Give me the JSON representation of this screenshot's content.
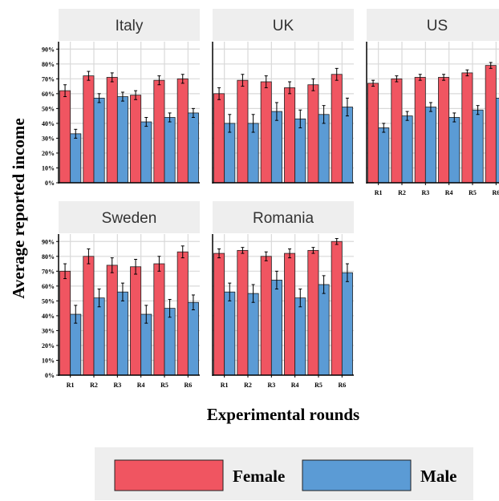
{
  "chart_data": {
    "type": "bar",
    "xlabel": "Experimental rounds",
    "ylabel": "Average reported income",
    "categories": [
      "R1",
      "R2",
      "R3",
      "R4",
      "R5",
      "R6"
    ],
    "ylim": [
      0,
      0.95
    ],
    "yticks": [
      "0%",
      "10%",
      "20%",
      "30%",
      "40%",
      "50%",
      "60%",
      "70%",
      "80%",
      "90%"
    ],
    "grid": true,
    "legend_position": "bottom",
    "series_colors": {
      "Female": "#f05561",
      "Male": "#5b9bd5"
    },
    "legend": [
      "Female",
      "Male"
    ],
    "panels": [
      {
        "title": "Italy",
        "female": [
          62,
          72,
          71,
          59,
          69,
          70
        ],
        "female_err": [
          4,
          3,
          3,
          3,
          3,
          3
        ],
        "male": [
          33,
          57,
          58,
          41,
          44,
          47
        ],
        "male_err": [
          3,
          3,
          3,
          3,
          3,
          3
        ]
      },
      {
        "title": "UK",
        "female": [
          60,
          69,
          68,
          64,
          66,
          73
        ],
        "female_err": [
          4,
          4,
          4,
          4,
          4,
          4
        ],
        "male": [
          40,
          40,
          48,
          43,
          46,
          51
        ],
        "male_err": [
          6,
          6,
          6,
          6,
          6,
          6
        ]
      },
      {
        "title": "US",
        "female": [
          67,
          70,
          71,
          71,
          74,
          79
        ],
        "female_err": [
          2,
          2,
          2,
          2,
          2,
          2
        ],
        "male": [
          37,
          45,
          51,
          44,
          49,
          57
        ],
        "male_err": [
          3,
          3,
          3,
          3,
          3,
          3
        ]
      },
      {
        "title": "Sweden",
        "female": [
          70,
          80,
          74,
          73,
          75,
          83
        ],
        "female_err": [
          5,
          5,
          5,
          5,
          5,
          4
        ],
        "male": [
          41,
          52,
          56,
          41,
          45,
          49
        ],
        "male_err": [
          6,
          6,
          6,
          6,
          6,
          5
        ]
      },
      {
        "title": "Romania",
        "female": [
          82,
          84,
          80,
          82,
          84,
          90
        ],
        "female_err": [
          3,
          2,
          3,
          3,
          2,
          2
        ],
        "male": [
          56,
          55,
          64,
          52,
          61,
          69
        ],
        "male_err": [
          6,
          6,
          6,
          6,
          6,
          6
        ]
      }
    ]
  }
}
